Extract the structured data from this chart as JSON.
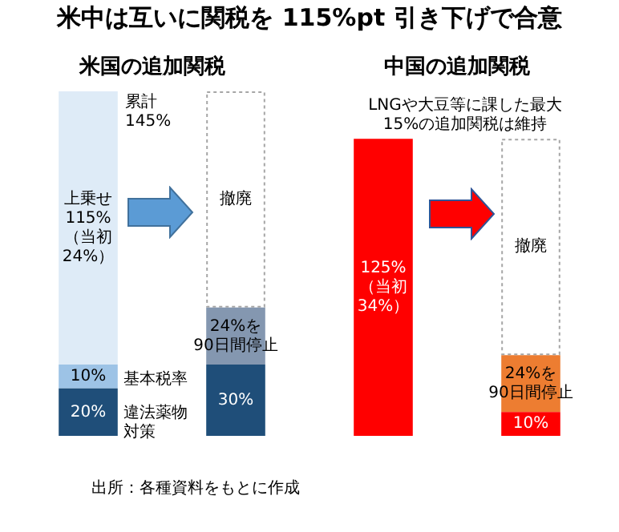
{
  "chart_data": {
    "type": "bar",
    "stacked": true,
    "title": "米中は互いに関税を 115%pt 引き下げで合意",
    "categories": [
      null,
      null,
      null,
      null
    ],
    "series": [
      {
        "colors": [
          "#1f4e79",
          "#1f4e79",
          "#ff0000",
          "#ff0000"
        ],
        "values": [
          20,
          30,
          125,
          10
        ],
        "value_labels": [
          "20%",
          "30%",
          "125%\n（当初\n34%）",
          "10%"
        ]
      },
      {
        "colors": [
          "#9dc3e6",
          "#8497b0",
          null,
          "#ed7d31"
        ],
        "values": [
          10,
          24,
          null,
          24
        ],
        "value_labels": [
          "10%",
          "24%を\n90日間停止",
          null,
          "24%を\n90日間停止"
        ]
      },
      {
        "colors": [
          "#deebf7",
          null,
          null,
          null
        ],
        "values": [
          115,
          null,
          null,
          null
        ],
        "value_labels": [
          "上乗せ\n115%\n（当初\n24%）",
          null,
          null,
          null
        ]
      },
      {
        "colors": [
          null,
          "#ffffff",
          null,
          "#ffffff"
        ],
        "line_style": "dotted",
        "values": [
          null,
          91,
          null,
          91
        ],
        "value_labels": [
          null,
          "撤廃",
          null,
          "撤廃"
        ]
      }
    ],
    "annotations": [
      "米国の追加関税",
      "中国の追加関税",
      "累計\n145%",
      "基本税率",
      "違法薬物対策",
      "LNGや大豆等に課した最大\n15%の追加関税は維持",
      "出所：各種資料をもとに作成"
    ],
    "legend": false
  }
}
